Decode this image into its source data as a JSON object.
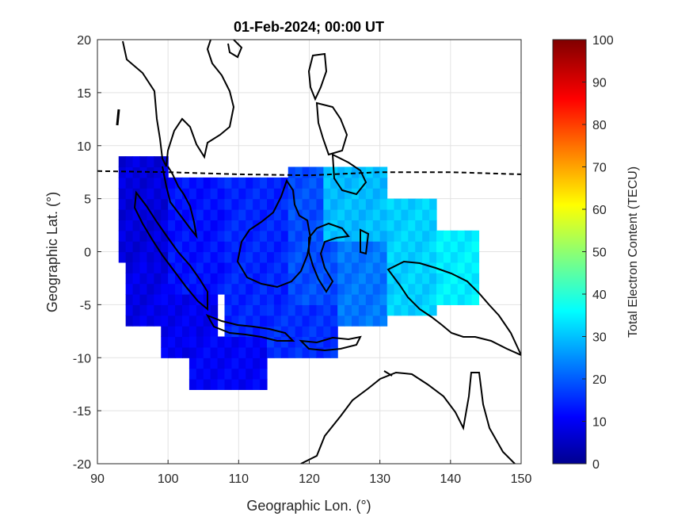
{
  "chart_data": {
    "type": "heatmap",
    "title": "01-Feb-2024; 00:00 UT",
    "xlabel": "Geographic Lon. (°)",
    "ylabel": "Geographic Lat. (°)",
    "xlim": [
      90,
      150
    ],
    "ylim": [
      -20,
      20
    ],
    "xticks": [
      "90",
      "100",
      "110",
      "120",
      "130",
      "140",
      "150"
    ],
    "yticks": [
      "20",
      "15",
      "10",
      "5",
      "0",
      "-5",
      "-10",
      "-15",
      "-20"
    ],
    "grid": true,
    "colorbar": {
      "label": "Total Electron Content (TECU)",
      "range": [
        0,
        100
      ],
      "ticks": [
        "0",
        "10",
        "20",
        "30",
        "40",
        "50",
        "60",
        "70",
        "80",
        "90",
        "100"
      ],
      "colormap": "jet"
    },
    "dip_equator_lat_by_lon": [
      [
        90,
        7.6
      ],
      [
        100,
        7.5
      ],
      [
        110,
        7.3
      ],
      [
        120,
        7.2
      ],
      [
        130,
        7.5
      ],
      [
        140,
        7.5
      ],
      [
        150,
        7.3
      ]
    ],
    "tec_regions": [
      {
        "lon": [
          93,
          100
        ],
        "lat": [
          -1,
          9
        ],
        "tec": 9
      },
      {
        "lon": [
          94,
          103
        ],
        "lat": [
          -7,
          -1
        ],
        "tec": 10
      },
      {
        "lon": [
          99,
          107
        ],
        "lat": [
          -10,
          -4
        ],
        "tec": 11
      },
      {
        "lon": [
          103,
          114
        ],
        "lat": [
          -13,
          -8
        ],
        "tec": 12
      },
      {
        "lon": [
          100,
          108
        ],
        "lat": [
          -4,
          7
        ],
        "tec": 14
      },
      {
        "lon": [
          108,
          117
        ],
        "lat": [
          -8,
          7
        ],
        "tec": 16
      },
      {
        "lon": [
          114,
          124
        ],
        "lat": [
          -10,
          -5
        ],
        "tec": 17
      },
      {
        "lon": [
          117,
          124
        ],
        "lat": [
          -5,
          8
        ],
        "tec": 20
      },
      {
        "lon": [
          124,
          131
        ],
        "lat": [
          -7,
          1
        ],
        "tec": 24
      },
      {
        "lon": [
          122,
          131
        ],
        "lat": [
          1,
          8
        ],
        "tec": 31
      },
      {
        "lon": [
          131,
          138
        ],
        "lat": [
          -6,
          5
        ],
        "tec": 33
      },
      {
        "lon": [
          138,
          144
        ],
        "lat": [
          -5,
          2
        ],
        "tec": 36
      }
    ]
  }
}
